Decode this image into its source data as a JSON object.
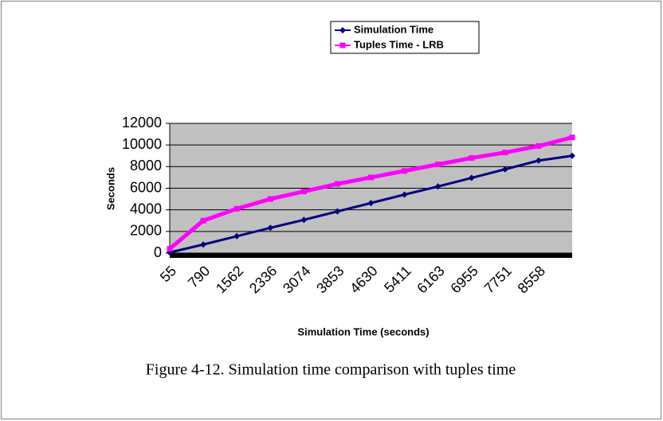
{
  "chart_data": {
    "type": "line",
    "caption": "Figure 4-12. Simulation time comparison with tuples time",
    "x_label": "Simulation Time (seconds)",
    "y_label": "Seconds",
    "categories": [
      "55",
      "790",
      "1562",
      "2336",
      "3074",
      "3853",
      "4630",
      "5411",
      "6163",
      "6955",
      "7751",
      "8558",
      null
    ],
    "series": [
      {
        "name": "Simulation Time",
        "color": "#000080",
        "marker": "diamond",
        "values": [
          55,
          790,
          1562,
          2336,
          3074,
          3853,
          4630,
          5411,
          6163,
          6955,
          7751,
          8558,
          9000
        ]
      },
      {
        "name": "Tuples Time - LRB",
        "color": "#ff00ff",
        "marker": "square",
        "values": [
          400,
          3000,
          4100,
          5000,
          5700,
          6400,
          7000,
          7600,
          8200,
          8800,
          9300,
          9900,
          10700
        ]
      }
    ],
    "ylim": [
      0,
      12000
    ],
    "yticks": [
      0,
      2000,
      4000,
      6000,
      8000,
      10000,
      12000
    ],
    "grid": true,
    "plot_background": "#c0c0c0",
    "legend": "top"
  }
}
